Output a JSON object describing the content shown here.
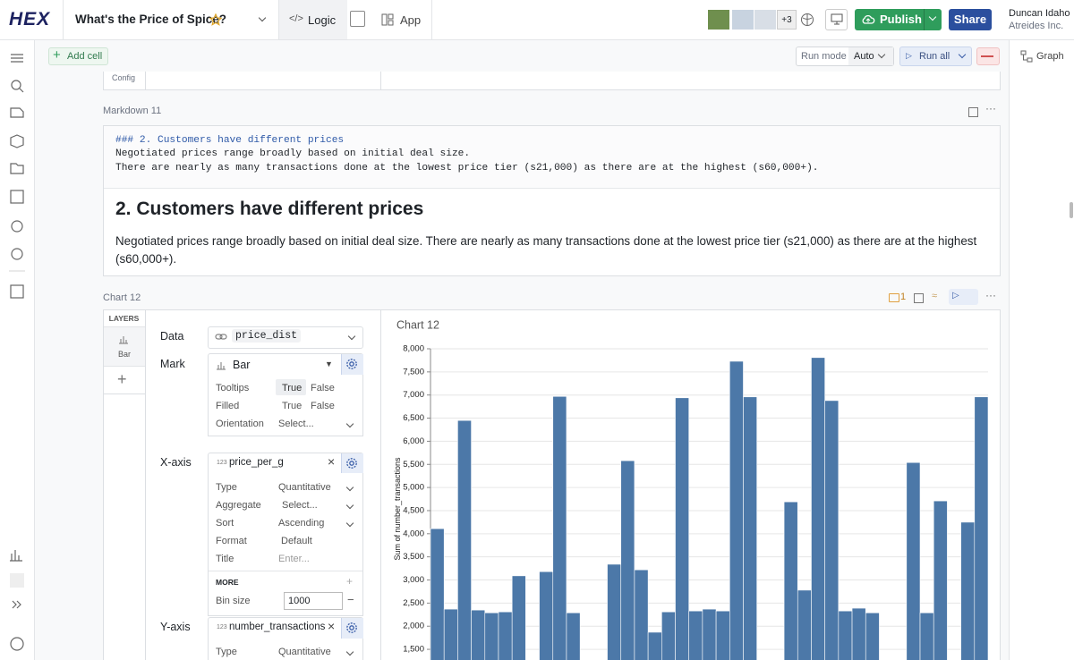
{
  "header": {
    "logo": "HEX",
    "title": "What's the Price of Spice?",
    "tabs": [
      "Logic",
      "App"
    ],
    "collaborators_more": "+3",
    "publish": "Publish",
    "share": "Share",
    "user": "Duncan Idaho",
    "org": "Atreides Inc."
  },
  "toolbar": {
    "add_cell": "Add cell",
    "run_mode_label": "Run mode",
    "run_mode": "Auto",
    "run_all": "Run all",
    "graph": "Graph"
  },
  "config_cell": {
    "tab": "Config"
  },
  "markdown_cell": {
    "label": "Markdown 11",
    "source": [
      "### 2. Customers have different prices",
      "Negotiated prices range broadly based on initial deal size.",
      "There are nearly as many transactions done at the lowest price tier (s21,000) as there are at the highest (s60,000+)."
    ],
    "heading": "2. Customers have different prices",
    "paragraph": "Negotiated prices range broadly based on initial deal size. There are nearly as many transactions done at the lowest price tier (s21,000) as there are at the highest (s60,000+)."
  },
  "chart_cell": {
    "label": "Chart 12",
    "comments": 1,
    "layers_title": "LAYERS",
    "layer": "Bar",
    "config": {
      "data_label": "Data",
      "data_value": "price_dist",
      "mark_label": "Mark",
      "mark_value": "Bar",
      "tooltips": {
        "label": "Tooltips",
        "options": [
          "True",
          "False"
        ]
      },
      "filled": {
        "label": "Filled",
        "options": [
          "True",
          "False"
        ]
      },
      "orientation": {
        "label": "Orientation",
        "value": "Select..."
      },
      "x_axis": {
        "label": "X-axis",
        "field_type": "123",
        "field": "price_per_g",
        "rows": [
          [
            "Type",
            "Quantitative"
          ],
          [
            "Aggregate",
            "Select..."
          ],
          [
            "Sort",
            "Ascending"
          ],
          [
            "Format",
            "Default"
          ],
          [
            "Title",
            "Enter..."
          ]
        ],
        "more": "MORE",
        "bin_size_label": "Bin size",
        "bin_size": 1000
      },
      "y_axis": {
        "label": "Y-axis",
        "field_type": "123",
        "field": "number_transactions",
        "rows": [
          [
            "Type",
            "Quantitative"
          ]
        ]
      }
    }
  },
  "chart_data": {
    "type": "bar",
    "title": "Chart 12",
    "y_label": "Sum of number_transactions",
    "categories": [
      null,
      null,
      null,
      null,
      null,
      null,
      null,
      null,
      null,
      null,
      null,
      null,
      null,
      null,
      null,
      null,
      null,
      null,
      null,
      null,
      null,
      null,
      null,
      null,
      null,
      null,
      null,
      null,
      null,
      null,
      null,
      null,
      null,
      null,
      null,
      null,
      null,
      null,
      null,
      null,
      null
    ],
    "values": [
      4110,
      2370,
      6450,
      2350,
      2290,
      2310,
      3090,
      null,
      3180,
      6970,
      2290,
      null,
      null,
      3340,
      5580,
      3220,
      1870,
      2310,
      6940,
      2330,
      2370,
      2330,
      7730,
      6960,
      null,
      null,
      4690,
      2780,
      7810,
      6880,
      2330,
      2390,
      2290,
      null,
      null,
      5540,
      2290,
      4710,
      null,
      4250,
      6960
    ],
    "color": "#4c78a8",
    "ylim": [
      1250,
      8000
    ],
    "yticks": [
      {
        "value": 1500,
        "label": "1,500"
      },
      {
        "value": 2000,
        "label": "2,000"
      },
      {
        "value": 2500,
        "label": "2,500"
      },
      {
        "value": 3000,
        "label": "3,000"
      },
      {
        "value": 3500,
        "label": "3,500"
      },
      {
        "value": 4000,
        "label": "4,000"
      },
      {
        "value": 4500,
        "label": "4,500"
      },
      {
        "value": 5000,
        "label": "5,000"
      },
      {
        "value": 5500,
        "label": "5,500"
      },
      {
        "value": 6000,
        "label": "6,000"
      },
      {
        "value": 6500,
        "label": "6,500"
      },
      {
        "value": 7000,
        "label": "7,000"
      },
      {
        "value": 7500,
        "label": "7,500"
      },
      {
        "value": 8000,
        "label": "8,000"
      }
    ],
    "grid": true
  }
}
